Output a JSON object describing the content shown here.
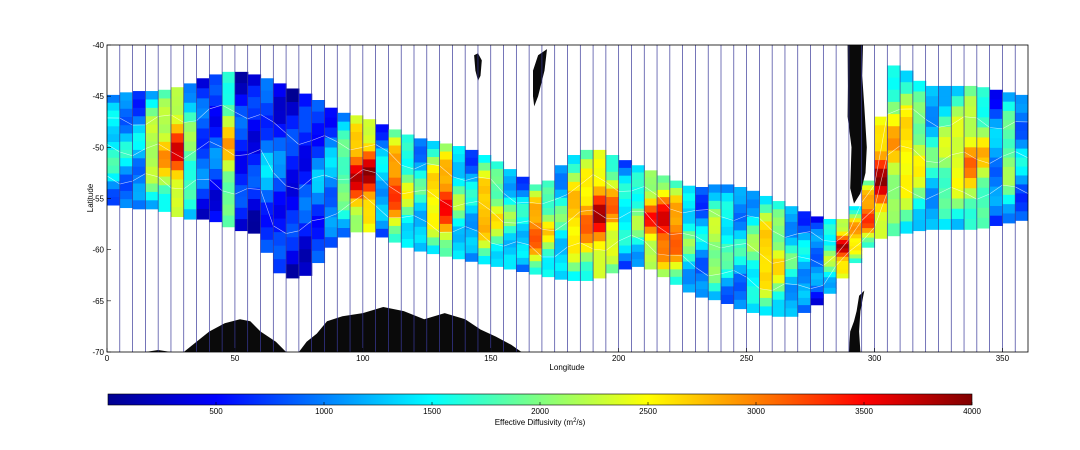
{
  "chart_data": {
    "type": "heatmap",
    "xlabel": "Longitude",
    "ylabel": "Latitude",
    "xlim": [
      0,
      360
    ],
    "ylim": [
      -70,
      -40
    ],
    "xticks": [
      0,
      50,
      100,
      150,
      200,
      250,
      300,
      350
    ],
    "yticks": [
      -40,
      -45,
      -50,
      -55,
      -60,
      -65,
      -70
    ],
    "grid": "vertical lines every 5 degrees longitude",
    "colormap": "jet",
    "colorbar": {
      "label_prefix": "Effective Diffusivity (m",
      "label_sup": "2",
      "label_suffix": "/s)",
      "range": [
        0,
        4000
      ],
      "ticks": [
        500,
        1000,
        1500,
        2000,
        2500,
        3000,
        3500,
        4000
      ]
    },
    "colors": {
      "land": "#0a0a0a",
      "grid_line": "#3a3a9a",
      "low": "#00008f",
      "high": "#800000"
    },
    "band_north_edge": [
      [
        0,
        -45
      ],
      [
        10,
        -44.5
      ],
      [
        20,
        -44.5
      ],
      [
        30,
        -44
      ],
      [
        40,
        -43
      ],
      [
        50,
        -42.5
      ],
      [
        60,
        -43
      ],
      [
        70,
        -44
      ],
      [
        80,
        -45
      ],
      [
        90,
        -46.5
      ],
      [
        100,
        -47
      ],
      [
        110,
        -48
      ],
      [
        120,
        -49
      ],
      [
        130,
        -49.5
      ],
      [
        140,
        -50
      ],
      [
        150,
        -51
      ],
      [
        160,
        -52.5
      ],
      [
        170,
        -54
      ],
      [
        180,
        -51
      ],
      [
        190,
        -50
      ],
      [
        200,
        -51
      ],
      [
        210,
        -52
      ],
      [
        220,
        -53
      ],
      [
        230,
        -54
      ],
      [
        240,
        -53.5
      ],
      [
        250,
        -54
      ],
      [
        260,
        -55
      ],
      [
        270,
        -56
      ],
      [
        280,
        -57
      ],
      [
        290,
        -57
      ],
      [
        300,
        -52
      ],
      [
        305,
        -42
      ],
      [
        310,
        -42
      ],
      [
        320,
        -44
      ],
      [
        330,
        -44
      ],
      [
        340,
        -44
      ],
      [
        350,
        -44.5
      ],
      [
        360,
        -45
      ]
    ],
    "band_south_edge": [
      [
        0,
        -55.5
      ],
      [
        10,
        -56
      ],
      [
        20,
        -56
      ],
      [
        30,
        -57
      ],
      [
        40,
        -57
      ],
      [
        50,
        -58
      ],
      [
        60,
        -58.5
      ],
      [
        65,
        -62
      ],
      [
        75,
        -63
      ],
      [
        80,
        -62
      ],
      [
        90,
        -59
      ],
      [
        100,
        -58
      ],
      [
        110,
        -59
      ],
      [
        120,
        -60
      ],
      [
        130,
        -60.5
      ],
      [
        140,
        -61
      ],
      [
        150,
        -61.5
      ],
      [
        160,
        -62
      ],
      [
        170,
        -62.5
      ],
      [
        180,
        -63
      ],
      [
        190,
        -63
      ],
      [
        200,
        -62
      ],
      [
        210,
        -61.5
      ],
      [
        220,
        -63
      ],
      [
        230,
        -64.5
      ],
      [
        240,
        -65
      ],
      [
        250,
        -66
      ],
      [
        260,
        -66.5
      ],
      [
        270,
        -66.5
      ],
      [
        280,
        -65
      ],
      [
        290,
        -62
      ],
      [
        300,
        -59
      ],
      [
        310,
        -58.5
      ],
      [
        320,
        -58
      ],
      [
        330,
        -58
      ],
      [
        340,
        -58
      ],
      [
        350,
        -57.5
      ],
      [
        360,
        -57
      ]
    ],
    "diffusivity_by_5deg": [
      1800,
      1500,
      1400,
      2600,
      3000,
      3600,
      2200,
      1000,
      900,
      2800,
      800,
      700,
      1200,
      900,
      700,
      800,
      1100,
      1300,
      2200,
      3800,
      3900,
      1500,
      3600,
      2400,
      1800,
      3000,
      3700,
      2100,
      1600,
      3200,
      2600,
      2000,
      1700,
      3500,
      2600,
      1900,
      3100,
      3300,
      3800,
      3200,
      1800,
      2200,
      3400,
      3900,
      3500,
      2000,
      1400,
      2500,
      1900,
      1600,
      2100,
      3100,
      2700,
      1800,
      1500,
      1200,
      2200,
      3800,
      3200,
      3600,
      3900,
      2900,
      3000,
      2600,
      1800,
      2400,
      2800,
      3100,
      2700,
      1300,
      2300,
      1400
    ]
  }
}
